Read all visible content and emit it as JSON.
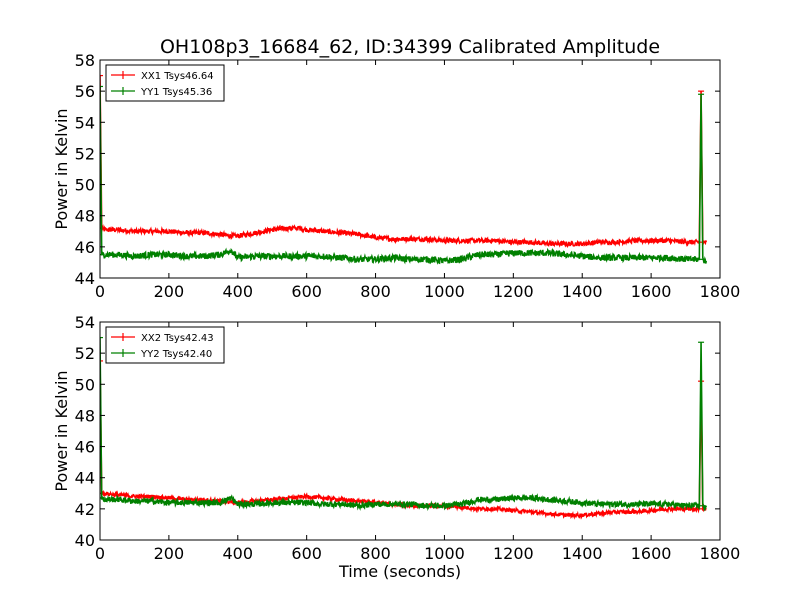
{
  "title": "OH108p3_16684_62, ID:34399 Calibrated Amplitude",
  "colors": {
    "xx": "#ff0000",
    "yy": "#008000",
    "axes": "#000000",
    "background": "#ffffff"
  },
  "chart_data": [
    {
      "type": "line",
      "title": "OH108p3_16684_62, ID:34399 Calibrated Amplitude",
      "xlabel": "",
      "ylabel": "Power in Kelvin",
      "xlim": [
        0,
        1800
      ],
      "ylim": [
        44,
        58
      ],
      "xticks": [
        "0",
        "200",
        "400",
        "600",
        "800",
        "1000",
        "1200",
        "1400",
        "1600",
        "1800"
      ],
      "yticks": [
        "44",
        "46",
        "48",
        "50",
        "52",
        "54",
        "56",
        "58"
      ],
      "grid": false,
      "legend_position": "top-left",
      "series": [
        {
          "name": "XX1 Tsys46.64",
          "color": "#ff0000",
          "x": [
            0,
            5,
            10,
            50,
            100,
            150,
            200,
            250,
            300,
            350,
            380,
            400,
            450,
            500,
            550,
            580,
            600,
            650,
            700,
            750,
            800,
            850,
            900,
            950,
            1000,
            1050,
            1100,
            1150,
            1200,
            1250,
            1300,
            1350,
            1400,
            1450,
            1500,
            1550,
            1600,
            1650,
            1700,
            1740,
            1745,
            1750,
            1755,
            1760
          ],
          "y": [
            57.0,
            47.2,
            47.1,
            47.1,
            47.0,
            47.0,
            47.0,
            46.9,
            46.9,
            46.8,
            46.7,
            46.7,
            46.9,
            47.1,
            47.2,
            47.2,
            47.1,
            47.0,
            46.9,
            46.8,
            46.6,
            46.5,
            46.5,
            46.5,
            46.4,
            46.4,
            46.4,
            46.4,
            46.3,
            46.3,
            46.2,
            46.2,
            46.2,
            46.3,
            46.3,
            46.4,
            46.4,
            46.4,
            46.3,
            46.3,
            56.0,
            46.3,
            46.3,
            46.3
          ],
          "noise": 0.15
        },
        {
          "name": "YY1 Tsys45.36",
          "color": "#008000",
          "x": [
            0,
            5,
            10,
            50,
            100,
            150,
            200,
            250,
            300,
            350,
            380,
            400,
            450,
            500,
            550,
            600,
            650,
            700,
            750,
            800,
            850,
            900,
            950,
            1000,
            1050,
            1100,
            1150,
            1200,
            1250,
            1300,
            1350,
            1400,
            1450,
            1500,
            1550,
            1600,
            1650,
            1700,
            1740,
            1745,
            1750,
            1755,
            1760
          ],
          "y": [
            56.3,
            45.5,
            45.5,
            45.5,
            45.4,
            45.5,
            45.5,
            45.4,
            45.4,
            45.5,
            45.8,
            45.3,
            45.4,
            45.4,
            45.4,
            45.4,
            45.4,
            45.3,
            45.2,
            45.2,
            45.3,
            45.2,
            45.2,
            45.1,
            45.2,
            45.5,
            45.5,
            45.6,
            45.6,
            45.6,
            45.5,
            45.4,
            45.3,
            45.3,
            45.3,
            45.3,
            45.3,
            45.2,
            45.2,
            55.8,
            45.2,
            45.1,
            45.1
          ],
          "noise": 0.2
        }
      ]
    },
    {
      "type": "line",
      "title": "",
      "xlabel": "Time (seconds)",
      "ylabel": "Power in Kelvin",
      "xlim": [
        0,
        1800
      ],
      "ylim": [
        40,
        54
      ],
      "xticks": [
        "0",
        "200",
        "400",
        "600",
        "800",
        "1000",
        "1200",
        "1400",
        "1600",
        "1800"
      ],
      "yticks": [
        "40",
        "42",
        "44",
        "46",
        "48",
        "50",
        "52",
        "54"
      ],
      "grid": false,
      "legend_position": "top-left",
      "series": [
        {
          "name": "XX2 Tsys42.43",
          "color": "#ff0000",
          "x": [
            0,
            5,
            10,
            50,
            100,
            150,
            200,
            250,
            300,
            350,
            400,
            450,
            500,
            550,
            600,
            650,
            700,
            750,
            800,
            850,
            900,
            950,
            1000,
            1050,
            1100,
            1150,
            1200,
            1250,
            1300,
            1350,
            1400,
            1450,
            1500,
            1550,
            1600,
            1650,
            1700,
            1740,
            1745,
            1750,
            1755,
            1760
          ],
          "y": [
            51.5,
            43.0,
            43.0,
            42.9,
            42.8,
            42.8,
            42.7,
            42.6,
            42.6,
            42.5,
            42.4,
            42.5,
            42.6,
            42.7,
            42.8,
            42.7,
            42.6,
            42.5,
            42.4,
            42.3,
            42.2,
            42.2,
            42.2,
            42.1,
            42.0,
            42.0,
            41.9,
            41.8,
            41.7,
            41.6,
            41.6,
            41.7,
            41.8,
            41.8,
            41.9,
            42.0,
            42.0,
            42.0,
            50.2,
            42.0,
            42.0,
            42.0
          ],
          "noise": 0.12
        },
        {
          "name": "YY2 Tsys42.40",
          "color": "#008000",
          "x": [
            0,
            5,
            10,
            50,
            100,
            150,
            200,
            250,
            300,
            350,
            380,
            400,
            450,
            500,
            550,
            600,
            650,
            700,
            750,
            800,
            850,
            900,
            950,
            1000,
            1050,
            1100,
            1150,
            1200,
            1250,
            1300,
            1350,
            1400,
            1450,
            1500,
            1550,
            1600,
            1650,
            1700,
            1740,
            1745,
            1750,
            1755,
            1760
          ],
          "y": [
            53.0,
            42.7,
            42.6,
            42.6,
            42.5,
            42.5,
            42.4,
            42.4,
            42.4,
            42.4,
            42.7,
            42.3,
            42.3,
            42.4,
            42.4,
            42.4,
            42.3,
            42.3,
            42.2,
            42.3,
            42.3,
            42.3,
            42.2,
            42.2,
            42.3,
            42.6,
            42.6,
            42.7,
            42.7,
            42.6,
            42.5,
            42.4,
            42.3,
            42.3,
            42.3,
            42.3,
            42.3,
            42.2,
            42.2,
            52.7,
            42.2,
            42.1,
            42.1
          ],
          "noise": 0.18
        }
      ]
    }
  ]
}
